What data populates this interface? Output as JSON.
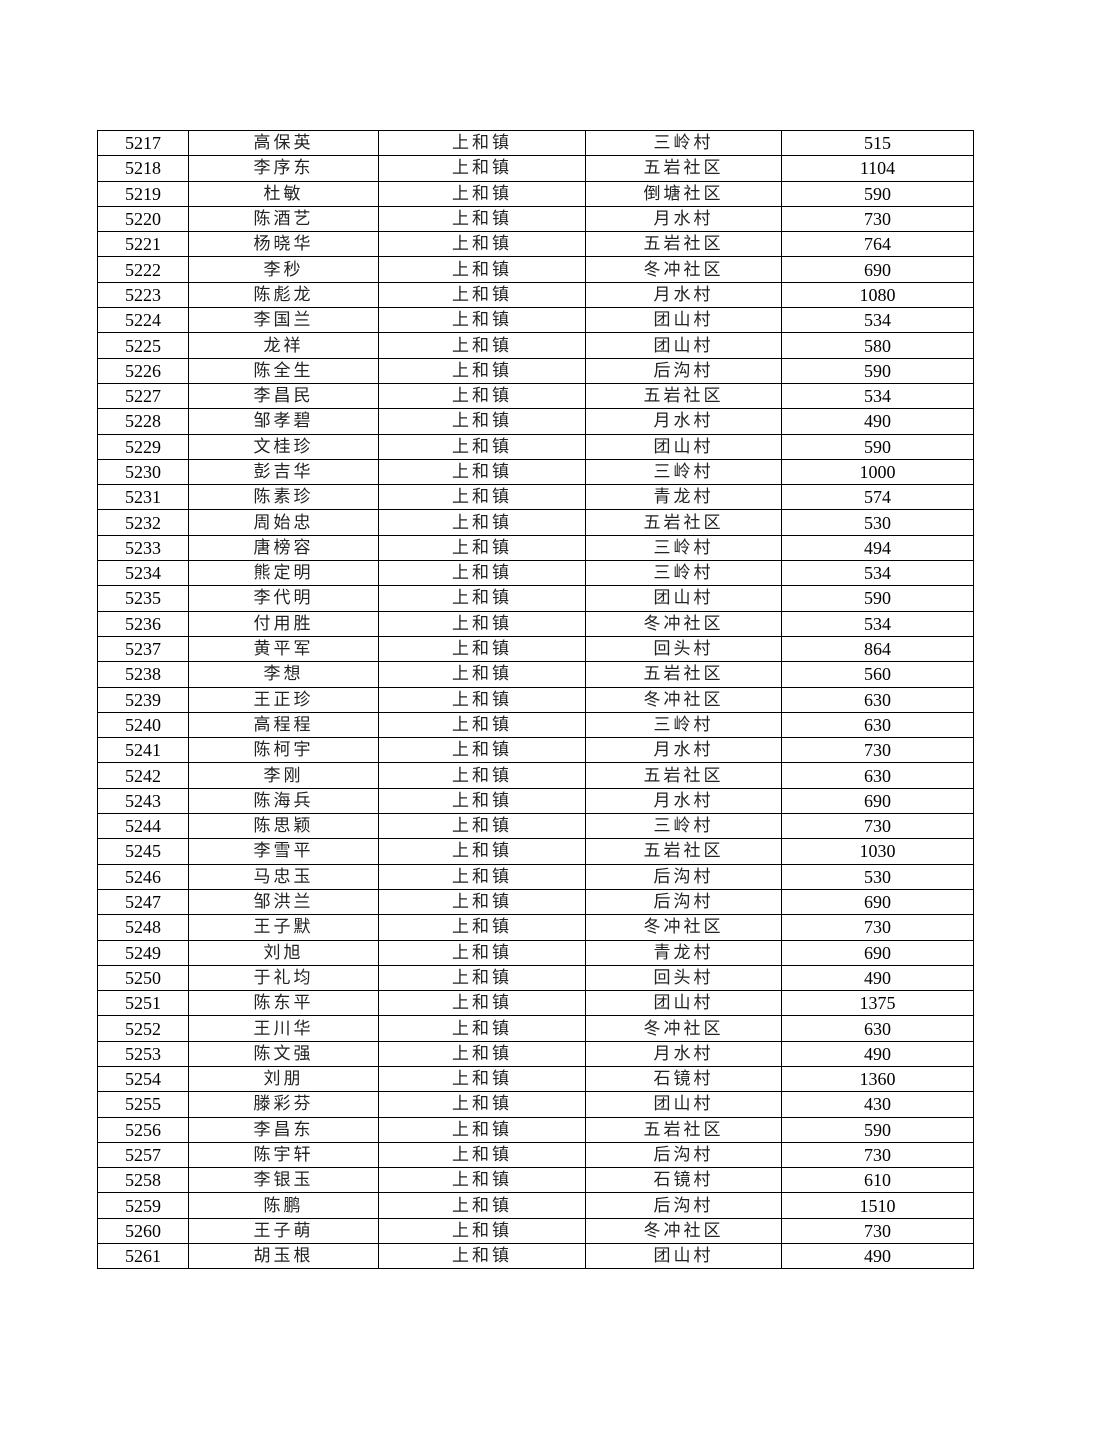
{
  "table": {
    "rows": [
      [
        "5217",
        "高保英",
        "上和镇",
        "三岭村",
        "515"
      ],
      [
        "5218",
        "李序东",
        "上和镇",
        "五岩社区",
        "1104"
      ],
      [
        "5219",
        "杜敏",
        "上和镇",
        "倒塘社区",
        "590"
      ],
      [
        "5220",
        "陈酒艺",
        "上和镇",
        "月水村",
        "730"
      ],
      [
        "5221",
        "杨晓华",
        "上和镇",
        "五岩社区",
        "764"
      ],
      [
        "5222",
        "李秒",
        "上和镇",
        "冬冲社区",
        "690"
      ],
      [
        "5223",
        "陈彪龙",
        "上和镇",
        "月水村",
        "1080"
      ],
      [
        "5224",
        "李国兰",
        "上和镇",
        "团山村",
        "534"
      ],
      [
        "5225",
        "龙祥",
        "上和镇",
        "团山村",
        "580"
      ],
      [
        "5226",
        "陈全生",
        "上和镇",
        "后沟村",
        "590"
      ],
      [
        "5227",
        "李昌民",
        "上和镇",
        "五岩社区",
        "534"
      ],
      [
        "5228",
        "邹孝碧",
        "上和镇",
        "月水村",
        "490"
      ],
      [
        "5229",
        "文桂珍",
        "上和镇",
        "团山村",
        "590"
      ],
      [
        "5230",
        "彭吉华",
        "上和镇",
        "三岭村",
        "1000"
      ],
      [
        "5231",
        "陈素珍",
        "上和镇",
        "青龙村",
        "574"
      ],
      [
        "5232",
        "周始忠",
        "上和镇",
        "五岩社区",
        "530"
      ],
      [
        "5233",
        "唐榜容",
        "上和镇",
        "三岭村",
        "494"
      ],
      [
        "5234",
        "熊定明",
        "上和镇",
        "三岭村",
        "534"
      ],
      [
        "5235",
        "李代明",
        "上和镇",
        "团山村",
        "590"
      ],
      [
        "5236",
        "付用胜",
        "上和镇",
        "冬冲社区",
        "534"
      ],
      [
        "5237",
        "黄平军",
        "上和镇",
        "回头村",
        "864"
      ],
      [
        "5238",
        "李想",
        "上和镇",
        "五岩社区",
        "560"
      ],
      [
        "5239",
        "王正珍",
        "上和镇",
        "冬冲社区",
        "630"
      ],
      [
        "5240",
        "高程程",
        "上和镇",
        "三岭村",
        "630"
      ],
      [
        "5241",
        "陈柯宇",
        "上和镇",
        "月水村",
        "730"
      ],
      [
        "5242",
        "李刚",
        "上和镇",
        "五岩社区",
        "630"
      ],
      [
        "5243",
        "陈海兵",
        "上和镇",
        "月水村",
        "690"
      ],
      [
        "5244",
        "陈思颖",
        "上和镇",
        "三岭村",
        "730"
      ],
      [
        "5245",
        "李雪平",
        "上和镇",
        "五岩社区",
        "1030"
      ],
      [
        "5246",
        "马忠玉",
        "上和镇",
        "后沟村",
        "530"
      ],
      [
        "5247",
        "邹洪兰",
        "上和镇",
        "后沟村",
        "690"
      ],
      [
        "5248",
        "王子默",
        "上和镇",
        "冬冲社区",
        "730"
      ],
      [
        "5249",
        "刘旭",
        "上和镇",
        "青龙村",
        "690"
      ],
      [
        "5250",
        "于礼均",
        "上和镇",
        "回头村",
        "490"
      ],
      [
        "5251",
        "陈东平",
        "上和镇",
        "团山村",
        "1375"
      ],
      [
        "5252",
        "王川华",
        "上和镇",
        "冬冲社区",
        "630"
      ],
      [
        "5253",
        "陈文强",
        "上和镇",
        "月水村",
        "490"
      ],
      [
        "5254",
        "刘朋",
        "上和镇",
        "石镜村",
        "1360"
      ],
      [
        "5255",
        "滕彩芬",
        "上和镇",
        "团山村",
        "430"
      ],
      [
        "5256",
        "李昌东",
        "上和镇",
        "五岩社区",
        "590"
      ],
      [
        "5257",
        "陈宇轩",
        "上和镇",
        "后沟村",
        "730"
      ],
      [
        "5258",
        "李银玉",
        "上和镇",
        "石镜村",
        "610"
      ],
      [
        "5259",
        "陈鹏",
        "上和镇",
        "后沟村",
        "1510"
      ],
      [
        "5260",
        "王子萌",
        "上和镇",
        "冬冲社区",
        "730"
      ],
      [
        "5261",
        "胡玉根",
        "上和镇",
        "团山村",
        "490"
      ]
    ]
  }
}
